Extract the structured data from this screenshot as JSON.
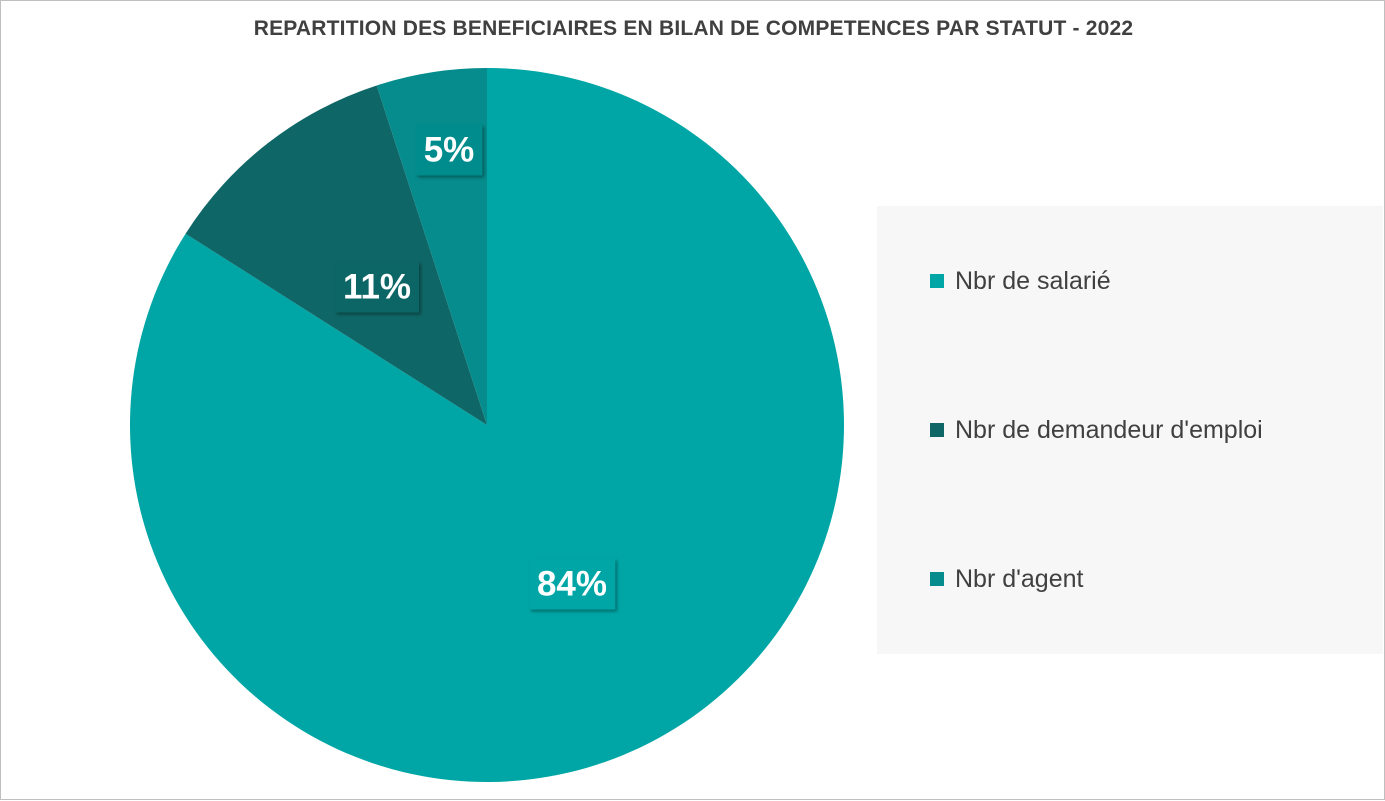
{
  "chart_data": {
    "type": "pie",
    "title": "REPARTITION DES BENEFICIAIRES EN BILAN DE COMPETENCES PAR STATUT - 2022",
    "categories": [
      "Nbr de salarié",
      "Nbr de demandeur d'emploi",
      "Nbr d'agent"
    ],
    "values": [
      84,
      11,
      5
    ],
    "data_labels": [
      "84%",
      "11%",
      "5%"
    ],
    "colors": [
      "#00a6a6",
      "#0f6666",
      "#068c8c"
    ],
    "legend_position": "right"
  }
}
